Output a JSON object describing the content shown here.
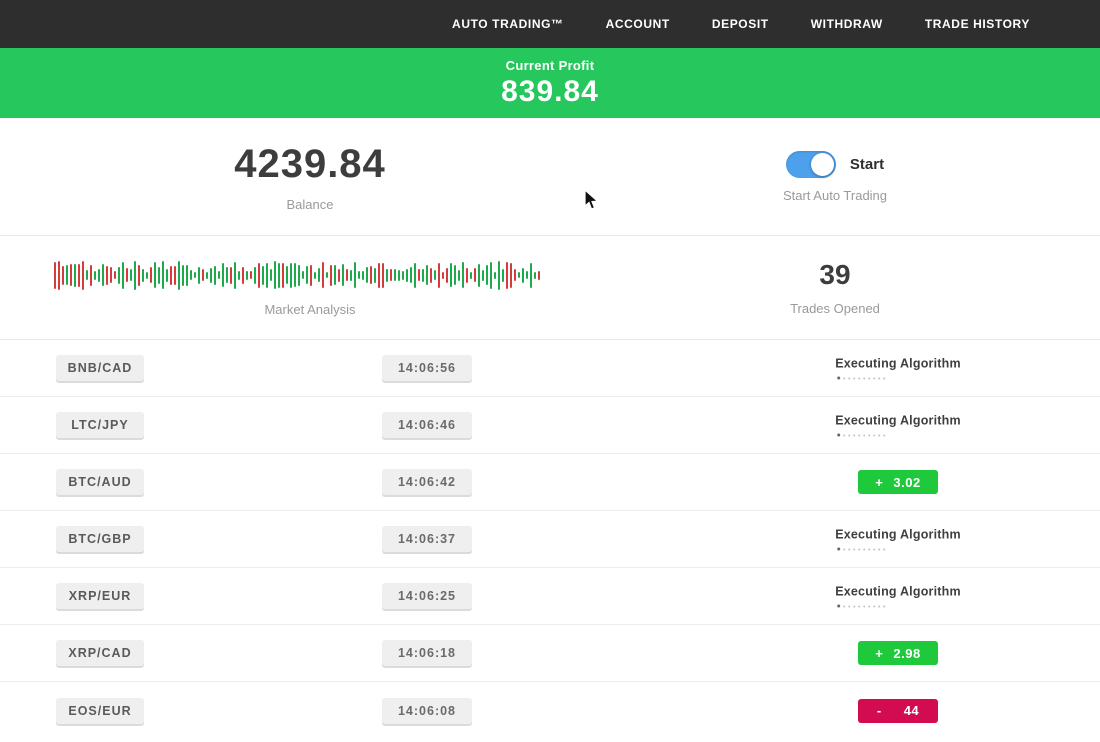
{
  "nav": {
    "items": [
      {
        "label": "AUTO TRADING™"
      },
      {
        "label": "ACCOUNT"
      },
      {
        "label": "DEPOSIT"
      },
      {
        "label": "WITHDRAW"
      },
      {
        "label": "TRADE HISTORY"
      }
    ]
  },
  "profit_banner": {
    "label": "Current Profit",
    "value": "839.84"
  },
  "summary": {
    "balance_value": "4239.84",
    "balance_label": "Balance",
    "toggle_label": "Start",
    "toggle_state": "on",
    "toggle_caption": "Start Auto Trading",
    "market_analysis_label": "Market Analysis",
    "trades_opened_value": "39",
    "trades_opened_label": "Trades Opened"
  },
  "trades": [
    {
      "pair": "BNB/CAD",
      "time": "14:06:56",
      "status": "executing",
      "status_label": "Executing Algorithm"
    },
    {
      "pair": "LTC/JPY",
      "time": "14:06:46",
      "status": "executing",
      "status_label": "Executing Algorithm"
    },
    {
      "pair": "BTC/AUD",
      "time": "14:06:42",
      "status": "profit",
      "sign": "+",
      "value": "3.02"
    },
    {
      "pair": "BTC/GBP",
      "time": "14:06:37",
      "status": "executing",
      "status_label": "Executing Algorithm"
    },
    {
      "pair": "XRP/EUR",
      "time": "14:06:25",
      "status": "executing",
      "status_label": "Executing Algorithm"
    },
    {
      "pair": "XRP/CAD",
      "time": "14:06:18",
      "status": "profit",
      "sign": "+",
      "value": "2.98"
    },
    {
      "pair": "EOS/EUR",
      "time": "14:06:08",
      "status": "loss",
      "sign": "-",
      "value": "44"
    }
  ],
  "colors": {
    "nav_bg": "#2e2e2e",
    "banner_green": "#26c75d",
    "badge_green": "#1ec93c",
    "badge_red": "#d30c51",
    "toggle_blue": "#4da1ec",
    "chart_green": "#1fa94d",
    "chart_red": "#d43b3b"
  }
}
